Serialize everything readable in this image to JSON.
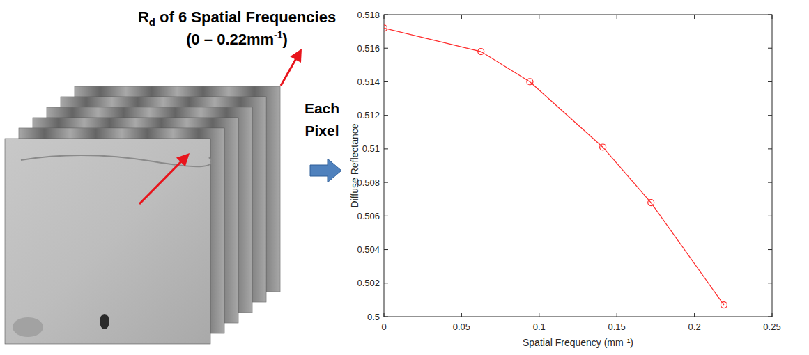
{
  "chart_data": {
    "type": "line",
    "xlabel": "Spatial Frequency (mm⁻¹)",
    "ylabel": "Diffuse Reflectance",
    "x": [
      0,
      0.0625,
      0.094,
      0.141,
      0.172,
      0.219
    ],
    "series": [
      {
        "name": "Diffuse Reflectance",
        "color": "#ff2a2a",
        "marker": "circle",
        "line_style": "solid",
        "values": [
          0.5172,
          0.5158,
          0.514,
          0.5101,
          0.5068,
          0.5007
        ]
      }
    ],
    "xlim": [
      0,
      0.25
    ],
    "xticks": [
      0,
      0.05,
      0.1,
      0.15,
      0.2,
      0.25
    ],
    "ylim": [
      0.5,
      0.518
    ],
    "yticks": [
      0.5,
      0.502,
      0.504,
      0.506,
      0.508,
      0.51,
      0.512,
      0.514,
      0.516,
      0.518
    ],
    "grid": false
  },
  "diagram": {
    "title": {
      "main": "R",
      "subscript": "d",
      "rest": " of 6 Spatial Frequencies",
      "line2": "(0 – 0.22mm",
      "superscript": "-1",
      "line2_end": ")"
    },
    "arrow_label": [
      "Each",
      "Pixel"
    ]
  }
}
